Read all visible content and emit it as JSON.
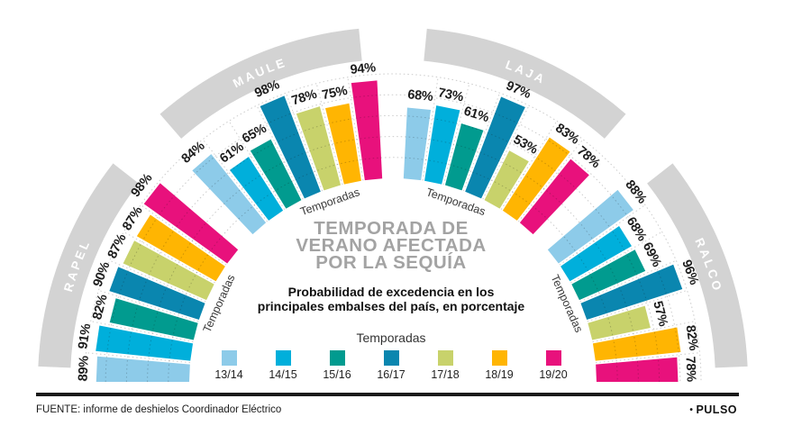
{
  "title": {
    "line1": "TEMPORADA DE",
    "line2": "VERANO AFECTADA",
    "line3": "POR LA SEQUÍA"
  },
  "subtitle": {
    "line1": "Probabilidad de excedencia en los",
    "line2": "principales embalses del país, en porcentaje"
  },
  "legend": {
    "title": "Temporadas"
  },
  "chart_data": {
    "type": "bar",
    "variant": "radial-fan-semicircle",
    "unit": "%",
    "rlim": [
      0,
      100
    ],
    "grid_interval": 20,
    "grid_on": true,
    "axis_label": "Temporadas",
    "seasons": [
      {
        "label": "13/14",
        "color": "#8DCBE9"
      },
      {
        "label": "14/15",
        "color": "#00AFDB"
      },
      {
        "label": "15/16",
        "color": "#019B8F"
      },
      {
        "label": "16/17",
        "color": "#0A86AF"
      },
      {
        "label": "17/18",
        "color": "#C8D26B"
      },
      {
        "label": "18/19",
        "color": "#FFB502"
      },
      {
        "label": "19/20",
        "color": "#E8117C"
      }
    ],
    "groups": [
      {
        "name": "RAPEL",
        "values": [
          89,
          91,
          82,
          90,
          87,
          87,
          98
        ]
      },
      {
        "name": "MAULE",
        "values": [
          84,
          61,
          65,
          98,
          78,
          75,
          94
        ]
      },
      {
        "name": "LAJA",
        "values": [
          68,
          73,
          61,
          97,
          53,
          83,
          78
        ]
      },
      {
        "name": "RALCO",
        "values": [
          88,
          68,
          69,
          96,
          57,
          82,
          78
        ]
      }
    ],
    "band_color": "#D3D3D3",
    "grid_color": "#CDCDCD"
  },
  "footer": {
    "source": "FUENTE: informe de deshielos Coordinador Eléctrico",
    "bullet": "•",
    "brand": "PULSO"
  },
  "palette": {
    "title_gray": "#A3A3A3",
    "text_dark": "#1C1C1C",
    "rule_black": "#1A1A1A"
  }
}
